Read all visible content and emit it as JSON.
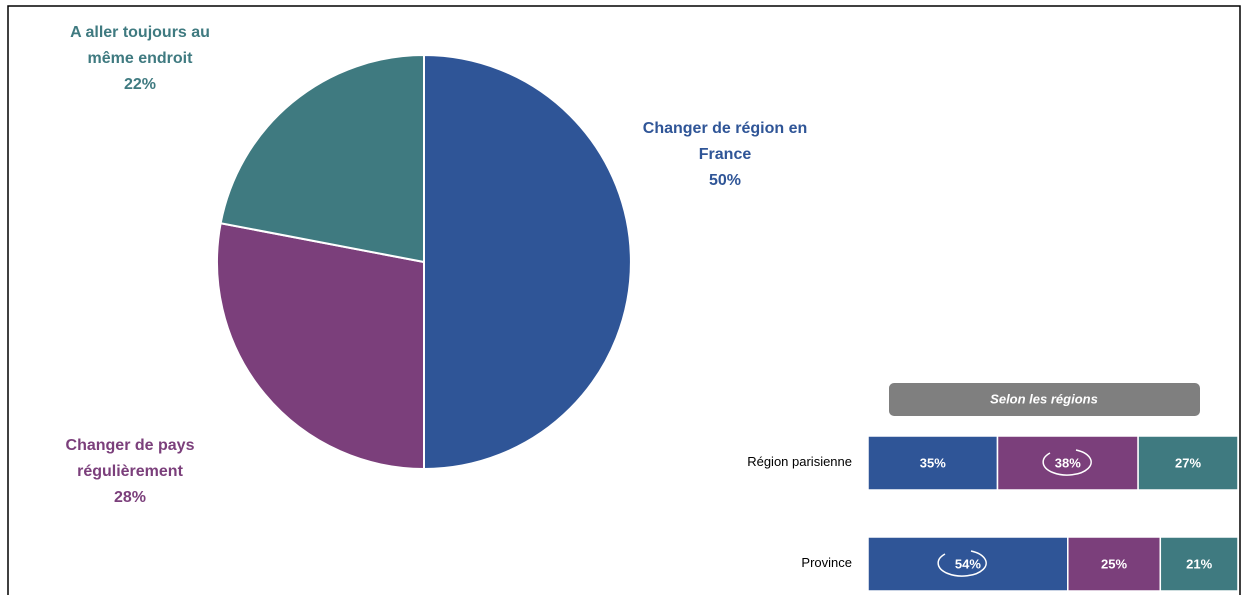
{
  "chart_data": [
    {
      "type": "pie",
      "categories": [
        "Changer de région en France",
        "Changer de pays régulièrement",
        "A aller toujours au même endroit"
      ],
      "values": [
        50,
        28,
        22
      ],
      "value_labels": [
        "50%",
        "28%",
        "22%"
      ],
      "colors": [
        "#2f5597",
        "#7b3f7b",
        "#3f7a80"
      ]
    },
    {
      "type": "stacked-bar",
      "subtitle": "Selon les régions",
      "categories": [
        "Région parisienne",
        "Province"
      ],
      "series": [
        {
          "color": "#2f5597",
          "values": [
            35,
            54
          ],
          "value_labels": [
            "35%",
            "54%"
          ]
        },
        {
          "color": "#7b3f7b",
          "values": [
            38,
            25
          ],
          "value_labels": [
            "38%",
            "25%"
          ]
        },
        {
          "color": "#3f7a80",
          "values": [
            27,
            21
          ],
          "value_labels": [
            "27%",
            "21%"
          ]
        }
      ],
      "xlim": [
        0,
        100
      ]
    }
  ]
}
